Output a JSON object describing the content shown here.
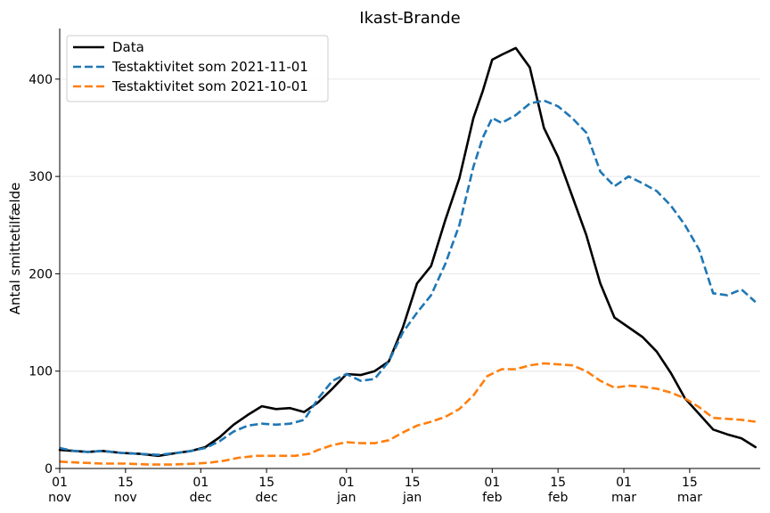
{
  "chart_data": {
    "type": "line",
    "title": "Ikast-Brande",
    "xlabel": "",
    "ylabel": "Antal smittetilfælde",
    "ylim": [
      0,
      452
    ],
    "y_ticks": [
      0,
      100,
      200,
      300,
      400
    ],
    "x_start": "2021-11-01",
    "x_end": "2022-03-30",
    "x_ticks": [
      {
        "date": "2021-11-01",
        "day": "01",
        "month": "nov"
      },
      {
        "date": "2021-11-15",
        "day": "15",
        "month": "nov"
      },
      {
        "date": "2021-12-01",
        "day": "01",
        "month": "dec"
      },
      {
        "date": "2021-12-15",
        "day": "15",
        "month": "dec"
      },
      {
        "date": "2022-01-01",
        "day": "01",
        "month": "jan"
      },
      {
        "date": "2022-01-15",
        "day": "15",
        "month": "jan"
      },
      {
        "date": "2022-02-01",
        "day": "01",
        "month": "feb"
      },
      {
        "date": "2022-02-15",
        "day": "15",
        "month": "feb"
      },
      {
        "date": "2022-03-01",
        "day": "01",
        "month": "mar"
      },
      {
        "date": "2022-03-15",
        "day": "15",
        "month": "mar"
      }
    ],
    "grid": "horizontal",
    "legend_position": "top-left",
    "series": [
      {
        "name": "Data",
        "color": "#000000",
        "dash": "solid",
        "points": [
          [
            "2021-11-01",
            19
          ],
          [
            "2021-11-04",
            18
          ],
          [
            "2021-11-07",
            17
          ],
          [
            "2021-11-10",
            18
          ],
          [
            "2021-11-14",
            16
          ],
          [
            "2021-11-18",
            15
          ],
          [
            "2021-11-22",
            13
          ],
          [
            "2021-11-26",
            16
          ],
          [
            "2021-11-29",
            18
          ],
          [
            "2021-12-02",
            22
          ],
          [
            "2021-12-05",
            32
          ],
          [
            "2021-12-08",
            45
          ],
          [
            "2021-12-11",
            55
          ],
          [
            "2021-12-14",
            64
          ],
          [
            "2021-12-17",
            61
          ],
          [
            "2021-12-20",
            62
          ],
          [
            "2021-12-23",
            58
          ],
          [
            "2021-12-26",
            68
          ],
          [
            "2021-12-29",
            82
          ],
          [
            "2022-01-01",
            97
          ],
          [
            "2022-01-04",
            96
          ],
          [
            "2022-01-07",
            100
          ],
          [
            "2022-01-10",
            110
          ],
          [
            "2022-01-13",
            145
          ],
          [
            "2022-01-16",
            190
          ],
          [
            "2022-01-19",
            208
          ],
          [
            "2022-01-22",
            255
          ],
          [
            "2022-01-25",
            298
          ],
          [
            "2022-01-28",
            360
          ],
          [
            "2022-01-30",
            388
          ],
          [
            "2022-02-01",
            420
          ],
          [
            "2022-02-03",
            425
          ],
          [
            "2022-02-06",
            432
          ],
          [
            "2022-02-09",
            412
          ],
          [
            "2022-02-12",
            350
          ],
          [
            "2022-02-15",
            320
          ],
          [
            "2022-02-18",
            280
          ],
          [
            "2022-02-21",
            240
          ],
          [
            "2022-02-24",
            190
          ],
          [
            "2022-02-27",
            155
          ],
          [
            "2022-03-02",
            145
          ],
          [
            "2022-03-05",
            135
          ],
          [
            "2022-03-08",
            120
          ],
          [
            "2022-03-11",
            98
          ],
          [
            "2022-03-14",
            72
          ],
          [
            "2022-03-17",
            56
          ],
          [
            "2022-03-20",
            40
          ],
          [
            "2022-03-23",
            35
          ],
          [
            "2022-03-26",
            31
          ],
          [
            "2022-03-29",
            22
          ]
        ]
      },
      {
        "name": "Testaktivitet som 2021-11-01",
        "color": "#1f77b4",
        "dash": "dashed",
        "points": [
          [
            "2021-11-01",
            21
          ],
          [
            "2021-11-04",
            18
          ],
          [
            "2021-11-07",
            17
          ],
          [
            "2021-11-10",
            18
          ],
          [
            "2021-11-14",
            16
          ],
          [
            "2021-11-18",
            15
          ],
          [
            "2021-11-22",
            14
          ],
          [
            "2021-11-26",
            16
          ],
          [
            "2021-11-29",
            18
          ],
          [
            "2021-12-02",
            21
          ],
          [
            "2021-12-05",
            28
          ],
          [
            "2021-12-08",
            38
          ],
          [
            "2021-12-11",
            44
          ],
          [
            "2021-12-14",
            46
          ],
          [
            "2021-12-17",
            45
          ],
          [
            "2021-12-20",
            46
          ],
          [
            "2021-12-23",
            50
          ],
          [
            "2021-12-26",
            72
          ],
          [
            "2021-12-29",
            90
          ],
          [
            "2022-01-01",
            97
          ],
          [
            "2022-01-04",
            90
          ],
          [
            "2022-01-07",
            92
          ],
          [
            "2022-01-10",
            110
          ],
          [
            "2022-01-13",
            140
          ],
          [
            "2022-01-16",
            160
          ],
          [
            "2022-01-19",
            178
          ],
          [
            "2022-01-22",
            210
          ],
          [
            "2022-01-25",
            250
          ],
          [
            "2022-01-28",
            310
          ],
          [
            "2022-01-30",
            340
          ],
          [
            "2022-02-01",
            360
          ],
          [
            "2022-02-03",
            355
          ],
          [
            "2022-02-06",
            363
          ],
          [
            "2022-02-09",
            375
          ],
          [
            "2022-02-12",
            378
          ],
          [
            "2022-02-15",
            372
          ],
          [
            "2022-02-18",
            360
          ],
          [
            "2022-02-21",
            345
          ],
          [
            "2022-02-24",
            305
          ],
          [
            "2022-02-27",
            290
          ],
          [
            "2022-03-02",
            300
          ],
          [
            "2022-03-05",
            293
          ],
          [
            "2022-03-08",
            285
          ],
          [
            "2022-03-11",
            270
          ],
          [
            "2022-03-14",
            250
          ],
          [
            "2022-03-17",
            225
          ],
          [
            "2022-03-20",
            180
          ],
          [
            "2022-03-23",
            178
          ],
          [
            "2022-03-26",
            184
          ],
          [
            "2022-03-29",
            171
          ]
        ]
      },
      {
        "name": "Testaktivitet som 2021-10-01",
        "color": "#ff7f0e",
        "dash": "dashed",
        "points": [
          [
            "2021-11-01",
            7
          ],
          [
            "2021-11-05",
            6
          ],
          [
            "2021-11-10",
            5
          ],
          [
            "2021-11-15",
            5
          ],
          [
            "2021-11-20",
            4
          ],
          [
            "2021-11-25",
            4
          ],
          [
            "2021-11-30",
            5
          ],
          [
            "2021-12-03",
            6
          ],
          [
            "2021-12-06",
            8
          ],
          [
            "2021-12-09",
            11
          ],
          [
            "2021-12-13",
            13
          ],
          [
            "2021-12-17",
            13
          ],
          [
            "2021-12-21",
            13
          ],
          [
            "2021-12-24",
            15
          ],
          [
            "2021-12-26",
            19
          ],
          [
            "2021-12-29",
            24
          ],
          [
            "2022-01-01",
            27
          ],
          [
            "2022-01-04",
            26
          ],
          [
            "2022-01-07",
            26
          ],
          [
            "2022-01-10",
            29
          ],
          [
            "2022-01-13",
            37
          ],
          [
            "2022-01-16",
            44
          ],
          [
            "2022-01-19",
            48
          ],
          [
            "2022-01-22",
            53
          ],
          [
            "2022-01-25",
            61
          ],
          [
            "2022-01-28",
            75
          ],
          [
            "2022-01-31",
            95
          ],
          [
            "2022-02-03",
            102
          ],
          [
            "2022-02-06",
            102
          ],
          [
            "2022-02-09",
            106
          ],
          [
            "2022-02-12",
            108
          ],
          [
            "2022-02-15",
            107
          ],
          [
            "2022-02-18",
            106
          ],
          [
            "2022-02-21",
            100
          ],
          [
            "2022-02-24",
            90
          ],
          [
            "2022-02-27",
            83
          ],
          [
            "2022-03-02",
            85
          ],
          [
            "2022-03-05",
            84
          ],
          [
            "2022-03-08",
            82
          ],
          [
            "2022-03-11",
            78
          ],
          [
            "2022-03-14",
            72
          ],
          [
            "2022-03-17",
            63
          ],
          [
            "2022-03-20",
            52
          ],
          [
            "2022-03-23",
            51
          ],
          [
            "2022-03-26",
            50
          ],
          [
            "2022-03-29",
            48
          ]
        ]
      }
    ]
  }
}
